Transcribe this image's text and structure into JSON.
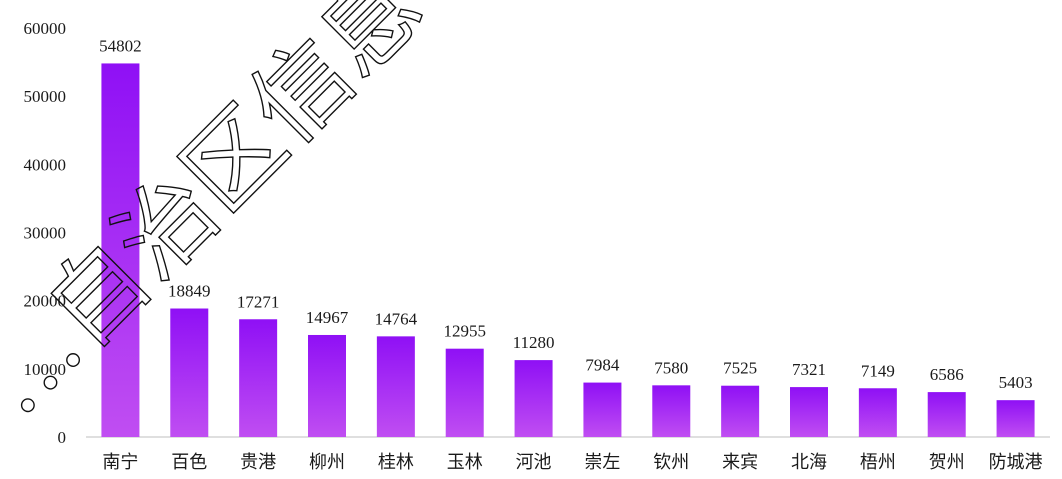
{
  "chart_data": {
    "type": "bar",
    "title": "",
    "xlabel": "",
    "ylabel": "",
    "categories": [
      "南宁",
      "百色",
      "贵港",
      "柳州",
      "桂林",
      "玉林",
      "河池",
      "崇左",
      "钦州",
      "来宾",
      "北海",
      "梧州",
      "贺州",
      "防城港"
    ],
    "values": [
      54802,
      18849,
      17271,
      14967,
      14764,
      12955,
      11280,
      7984,
      7580,
      7525,
      7321,
      7149,
      6586,
      5403
    ],
    "ylim": [
      0,
      60000
    ],
    "yticks": [
      0,
      10000,
      20000,
      30000,
      40000,
      50000,
      60000
    ],
    "grid": false,
    "legend": "none",
    "bar_gradient": {
      "top": "#8f10f5",
      "bottom": "#c04ef2"
    },
    "watermark": "…自治区信息中心"
  }
}
